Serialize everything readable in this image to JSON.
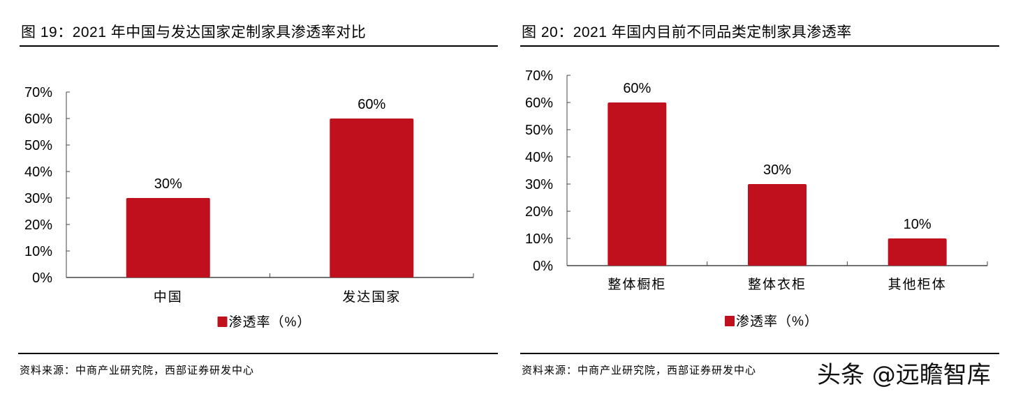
{
  "colors": {
    "bar": "#c0101e",
    "axis": "#444444"
  },
  "chart_data": [
    {
      "type": "bar",
      "title": "图 19：2021 年中国与发达国家定制家具渗透率对比",
      "categories": [
        "中国",
        "发达国家"
      ],
      "series": [
        {
          "name": "渗透率（%）",
          "values": [
            30,
            60
          ]
        }
      ],
      "data_labels": [
        "30%",
        "60%"
      ],
      "ylim": [
        0,
        70
      ],
      "yticks": [
        "0%",
        "10%",
        "20%",
        "30%",
        "40%",
        "50%",
        "60%",
        "70%"
      ],
      "grid": false,
      "legend": "bottom",
      "source": "资料来源：中商产业研究院，西部证券研发中心"
    },
    {
      "type": "bar",
      "title": "图 20：2021 年国内目前不同品类定制家具渗透率",
      "categories": [
        "整体橱柜",
        "整体衣柜",
        "其他柜体"
      ],
      "series": [
        {
          "name": "渗透率（%）",
          "values": [
            60,
            30,
            10
          ]
        }
      ],
      "data_labels": [
        "60%",
        "30%",
        "10%"
      ],
      "ylim": [
        0,
        70
      ],
      "yticks": [
        "0%",
        "10%",
        "20%",
        "30%",
        "40%",
        "50%",
        "60%",
        "70%"
      ],
      "grid": false,
      "legend": "bottom",
      "source": "资料来源：中商产业研究院，西部证券研发中心"
    }
  ],
  "watermark": "头条 @远瞻智库"
}
